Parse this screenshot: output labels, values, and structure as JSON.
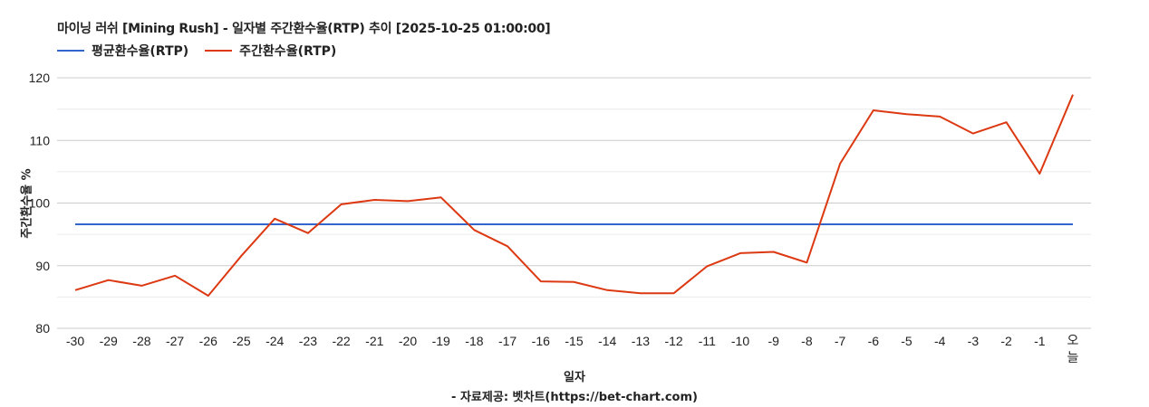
{
  "title": "마이닝 러쉬 [Mining Rush] - 일자별 주간환수율(RTP) 추이 [2025-10-25 01:00:00]",
  "legend": [
    {
      "label": "평균환수율(RTP)",
      "color": "#3366cc"
    },
    {
      "label": "주간환수율(RTP)",
      "color": "#dc3912"
    }
  ],
  "axes": {
    "ylabel": "주간환수율 %",
    "xlabel": "일자",
    "source": "- 자료제공: 벳차트(https://bet-chart.com)"
  },
  "chart_data": {
    "type": "line",
    "title": "마이닝 러쉬 [Mining Rush] - 일자별 주간환수율(RTP) 추이 [2025-10-25 01:00:00]",
    "xlabel": "일자",
    "ylabel": "주간환수율 %",
    "ylim": [
      80,
      120
    ],
    "yticks": [
      80,
      90,
      100,
      110,
      120
    ],
    "grid": true,
    "legend_position": "top-left",
    "categories": [
      "-30",
      "-29",
      "-28",
      "-27",
      "-26",
      "-25",
      "-24",
      "-23",
      "-22",
      "-21",
      "-20",
      "-19",
      "-18",
      "-17",
      "-16",
      "-15",
      "-14",
      "-13",
      "-12",
      "-11",
      "-10",
      "-9",
      "-8",
      "-7",
      "-6",
      "-5",
      "-4",
      "-3",
      "-2",
      "-1",
      "오늘"
    ],
    "series": [
      {
        "name": "평균환수율(RTP)",
        "color": "#3366cc",
        "values": [
          96.6,
          96.6,
          96.6,
          96.6,
          96.6,
          96.6,
          96.6,
          96.6,
          96.6,
          96.6,
          96.6,
          96.6,
          96.6,
          96.6,
          96.6,
          96.6,
          96.6,
          96.6,
          96.6,
          96.6,
          96.6,
          96.6,
          96.6,
          96.6,
          96.6,
          96.6,
          96.6,
          96.6,
          96.6,
          96.6,
          96.6
        ]
      },
      {
        "name": "주간환수율(RTP)",
        "color": "#dc3912",
        "values": [
          86.1,
          87.7,
          86.8,
          88.4,
          85.2,
          91.6,
          97.5,
          95.2,
          99.8,
          100.5,
          100.3,
          100.9,
          95.7,
          93.1,
          87.5,
          87.4,
          86.1,
          85.6,
          85.6,
          89.9,
          92.0,
          92.2,
          90.5,
          106.3,
          114.8,
          114.2,
          113.8,
          111.1,
          112.9,
          104.7,
          117.3
        ]
      }
    ]
  }
}
